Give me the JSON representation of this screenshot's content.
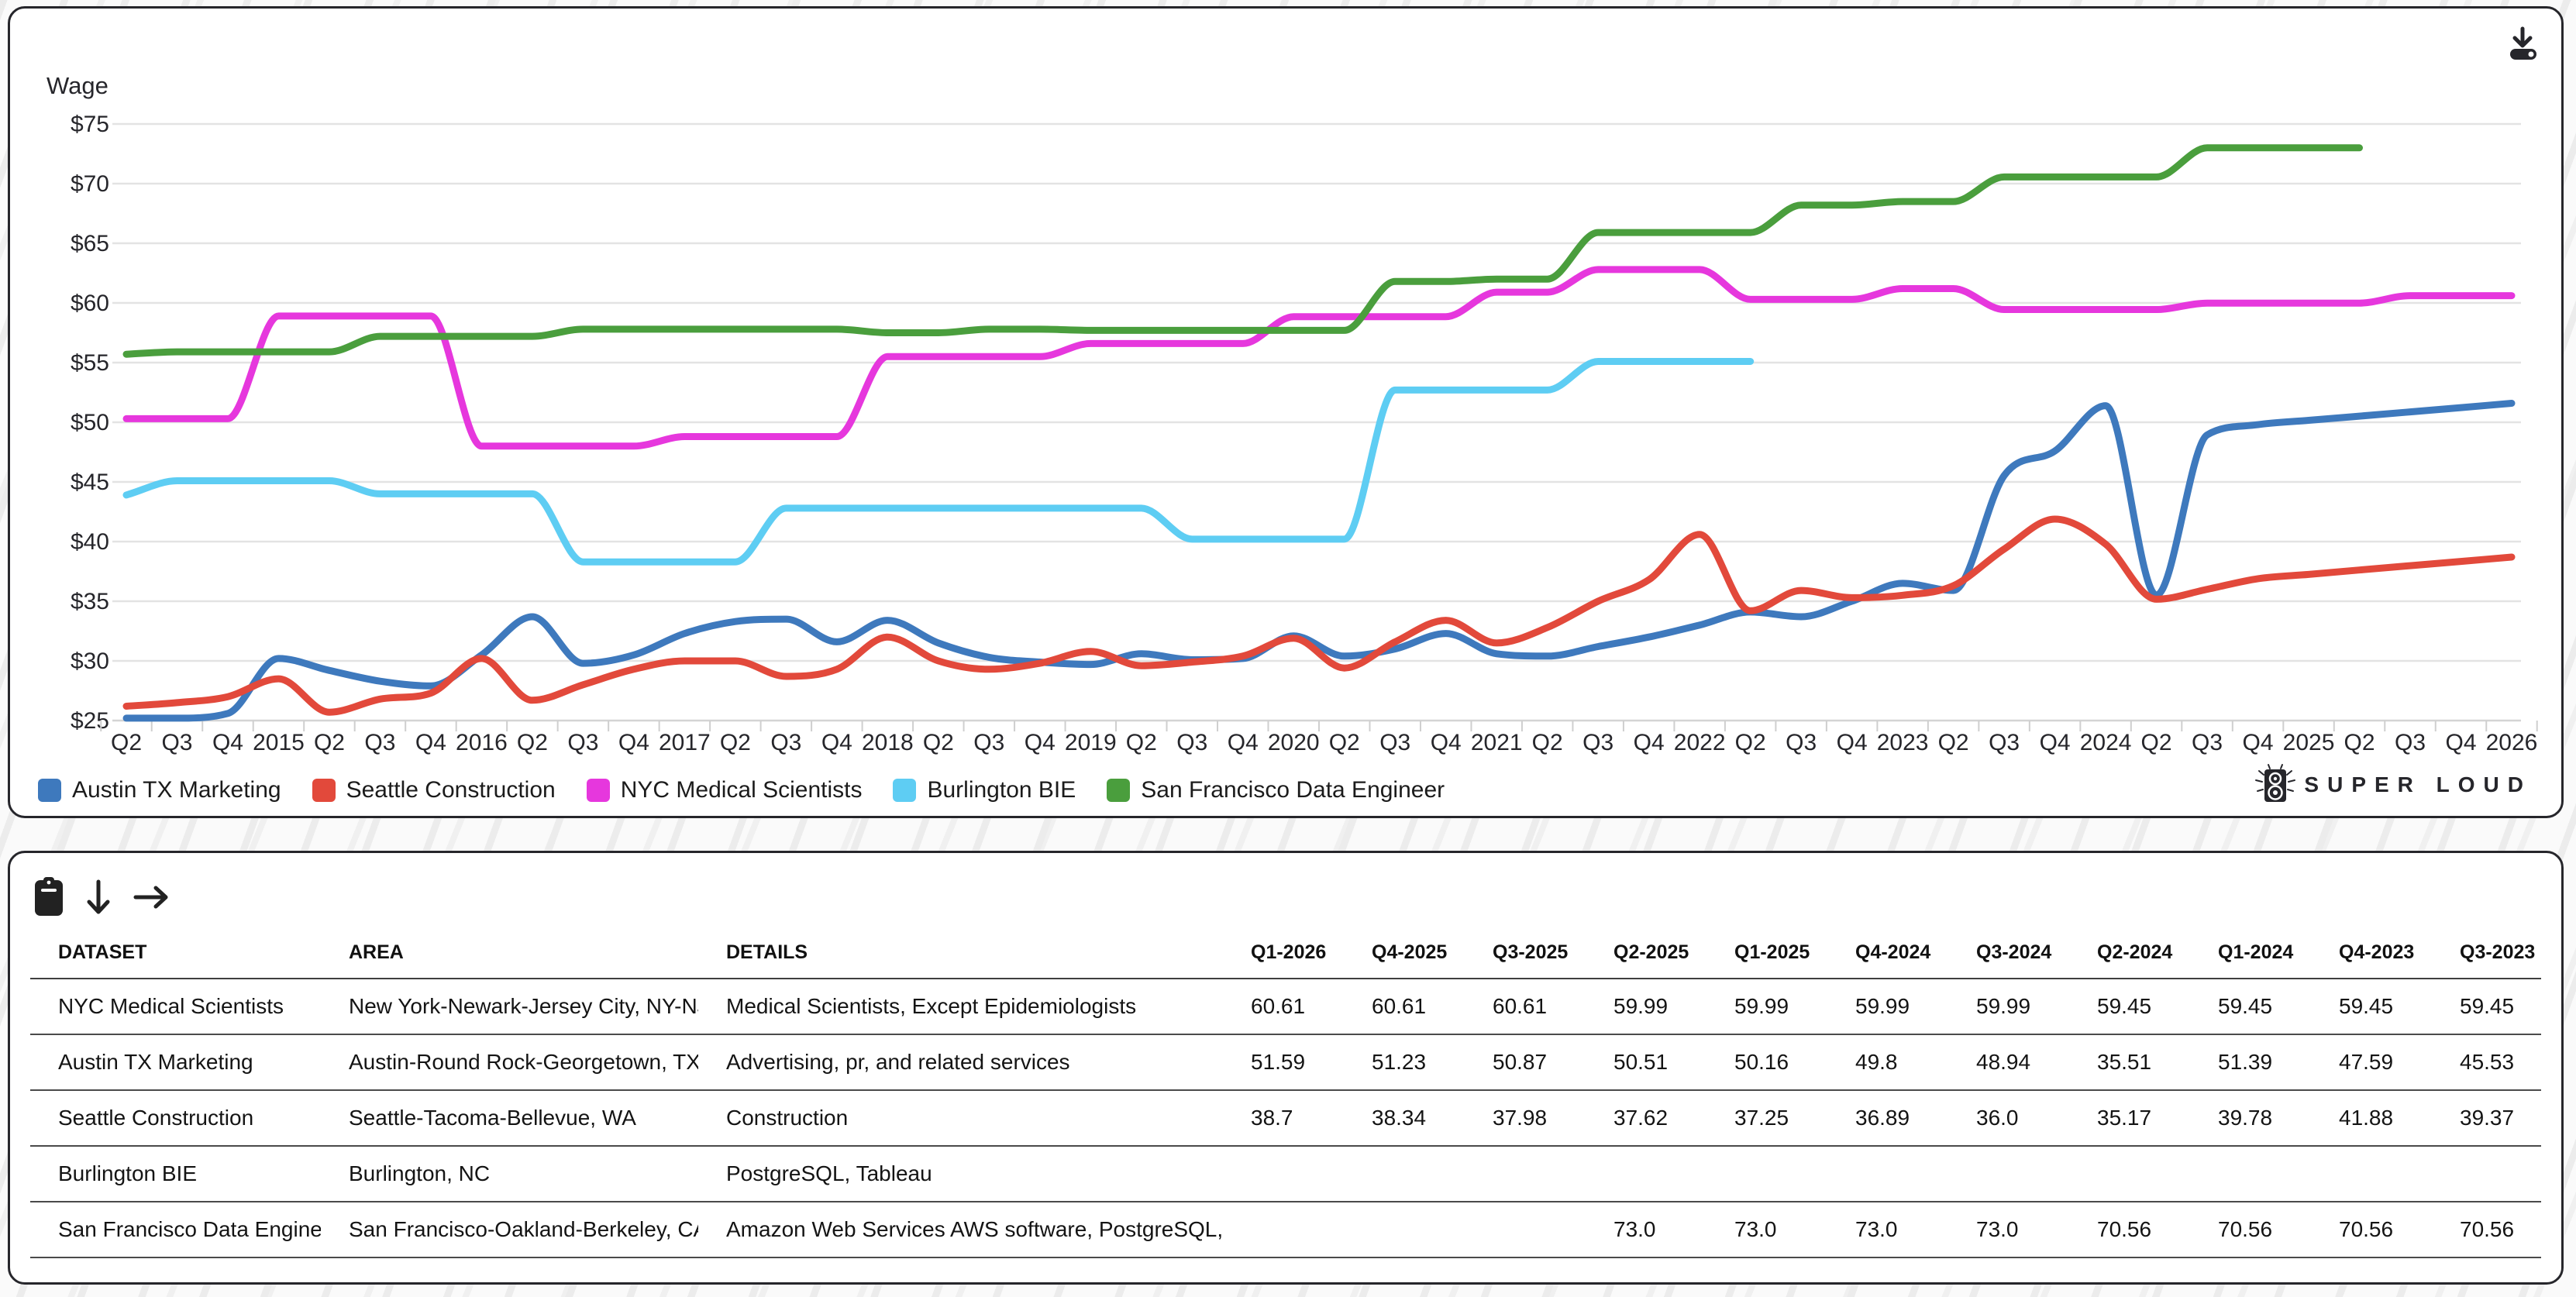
{
  "chart_panel": {
    "logo_text": "SUPER LOUD"
  },
  "chart_data": {
    "type": "line",
    "title": "Wage",
    "ylabel": "Wage",
    "xlabel": "",
    "ylim": [
      25,
      75
    ],
    "y_tick_step": 5,
    "y_tick_labels": [
      "$75",
      "$70",
      "$65",
      "$60",
      "$55",
      "$50",
      "$45",
      "$40",
      "$35",
      "$30",
      "$25"
    ],
    "grid": true,
    "legend_position": "bottom",
    "x_categories": [
      "Q2",
      "Q3",
      "Q4",
      "2015",
      "Q2",
      "Q3",
      "Q4",
      "2016",
      "Q2",
      "Q3",
      "Q4",
      "2017",
      "Q2",
      "Q3",
      "Q4",
      "2018",
      "Q2",
      "Q3",
      "Q4",
      "2019",
      "Q2",
      "Q3",
      "Q4",
      "2020",
      "Q2",
      "Q3",
      "Q4",
      "2021",
      "Q2",
      "Q3",
      "Q4",
      "2022",
      "Q2",
      "Q3",
      "Q4",
      "2023",
      "Q2",
      "Q3",
      "Q4",
      "2024",
      "Q2",
      "Q3",
      "Q4",
      "2025",
      "Q2",
      "Q3",
      "Q4",
      "2026"
    ],
    "series": [
      {
        "name": "Austin TX Marketing",
        "color": "#3e79bd",
        "values": [
          25.2,
          25.2,
          25.6,
          30.2,
          29.2,
          28.3,
          27.9,
          30.5,
          33.7,
          29.8,
          30.5,
          32.3,
          33.3,
          33.5,
          31.6,
          33.4,
          31.5,
          30.3,
          29.9,
          29.7,
          30.6,
          30.1,
          30.2,
          32.1,
          30.4,
          31.0,
          32.3,
          30.6,
          30.4,
          31.2,
          32.0,
          33.0,
          34.1,
          33.7,
          35.0,
          36.5,
          35.9,
          45.53,
          47.59,
          51.39,
          35.51,
          48.94,
          49.8,
          50.16,
          50.51,
          50.87,
          51.23,
          51.59
        ]
      },
      {
        "name": "Seattle Construction",
        "color": "#e2493b",
        "values": [
          26.2,
          26.5,
          27.0,
          28.5,
          25.7,
          26.8,
          27.3,
          30.2,
          26.7,
          28.0,
          29.3,
          30.0,
          30.0,
          28.7,
          29.3,
          32.0,
          30.0,
          29.3,
          29.8,
          30.8,
          29.6,
          29.9,
          30.4,
          31.9,
          29.4,
          31.6,
          33.4,
          31.5,
          32.8,
          35.0,
          36.8,
          40.6,
          34.2,
          35.9,
          35.3,
          35.5,
          36.3,
          39.37,
          41.88,
          39.78,
          35.17,
          36.0,
          36.89,
          37.25,
          37.62,
          37.98,
          38.34,
          38.7
        ]
      },
      {
        "name": "NYC Medical Scientists",
        "color": "#e637dd",
        "values": [
          50.3,
          50.3,
          50.3,
          58.9,
          58.9,
          58.9,
          58.9,
          48.0,
          48.0,
          48.0,
          48.0,
          48.8,
          48.8,
          48.8,
          48.8,
          55.5,
          55.5,
          55.5,
          55.5,
          56.6,
          56.6,
          56.6,
          56.6,
          58.85,
          58.85,
          58.85,
          58.85,
          60.9,
          60.9,
          62.8,
          62.8,
          62.8,
          60.3,
          60.3,
          60.3,
          61.2,
          61.2,
          59.45,
          59.45,
          59.45,
          59.45,
          59.99,
          59.99,
          59.99,
          59.99,
          60.61,
          60.61,
          60.61
        ]
      },
      {
        "name": "Burlington BIE",
        "color": "#5ecdf3",
        "values": [
          43.9,
          45.1,
          45.1,
          45.1,
          45.1,
          44.0,
          44.0,
          44.0,
          44.0,
          38.3,
          38.3,
          38.3,
          38.3,
          42.8,
          42.8,
          42.8,
          42.8,
          42.8,
          42.8,
          42.8,
          42.8,
          40.2,
          40.2,
          40.2,
          40.2,
          52.7,
          52.7,
          52.7,
          52.7,
          55.1,
          55.1,
          55.1,
          55.1,
          null,
          null,
          null,
          null,
          null,
          null,
          null,
          null,
          null,
          null,
          null,
          null,
          null,
          null,
          null
        ]
      },
      {
        "name": "San Francisco Data Engineer",
        "color": "#4a9e3d",
        "values": [
          55.7,
          55.9,
          55.9,
          55.9,
          55.9,
          57.2,
          57.2,
          57.2,
          57.2,
          57.8,
          57.8,
          57.8,
          57.8,
          57.8,
          57.8,
          57.5,
          57.5,
          57.8,
          57.8,
          57.7,
          57.7,
          57.7,
          57.7,
          57.7,
          57.7,
          61.8,
          61.8,
          62.0,
          62.0,
          65.9,
          65.9,
          65.9,
          65.9,
          68.2,
          68.2,
          68.5,
          68.5,
          70.56,
          70.56,
          70.56,
          70.56,
          73.0,
          73.0,
          73.0,
          73.0,
          null,
          null,
          null
        ]
      }
    ]
  },
  "table_panel": {
    "columns": [
      "DATASET",
      "AREA",
      "DETAILS",
      "Q1-2026",
      "Q4-2025",
      "Q3-2025",
      "Q2-2025",
      "Q1-2025",
      "Q4-2024",
      "Q3-2024",
      "Q2-2024",
      "Q1-2024",
      "Q4-2023",
      "Q3-2023"
    ],
    "rows": [
      {
        "dataset": "NYC Medical Scientists",
        "area": "New York-Newark-Jersey City, NY-NJ-PA",
        "details": "Medical Scientists, Except Epidemiologists",
        "values": [
          "60.61",
          "60.61",
          "60.61",
          "59.99",
          "59.99",
          "59.99",
          "59.99",
          "59.45",
          "59.45",
          "59.45",
          "59.45"
        ]
      },
      {
        "dataset": "Austin TX Marketing",
        "area": "Austin-Round Rock-Georgetown, TX",
        "details": "Advertising, pr, and related services",
        "values": [
          "51.59",
          "51.23",
          "50.87",
          "50.51",
          "50.16",
          "49.8",
          "48.94",
          "35.51",
          "51.39",
          "47.59",
          "45.53"
        ]
      },
      {
        "dataset": "Seattle Construction",
        "area": "Seattle-Tacoma-Bellevue, WA",
        "details": "Construction",
        "values": [
          "38.7",
          "38.34",
          "37.98",
          "37.62",
          "37.25",
          "36.89",
          "36.0",
          "35.17",
          "39.78",
          "41.88",
          "39.37"
        ]
      },
      {
        "dataset": "Burlington BIE",
        "area": "Burlington, NC",
        "details": "PostgreSQL, Tableau",
        "values": [
          "",
          "",
          "",
          "",
          "",
          "",
          "",
          "",
          "",
          "",
          ""
        ]
      },
      {
        "dataset": "San Francisco Data Engineer",
        "area": "San Francisco-Oakland-Berkeley, CA",
        "details": "Amazon Web Services AWS software, PostgreSQL, Python",
        "values": [
          "",
          "",
          "",
          "73.0",
          "73.0",
          "73.0",
          "73.0",
          "70.56",
          "70.56",
          "70.56",
          "70.56"
        ]
      }
    ]
  }
}
